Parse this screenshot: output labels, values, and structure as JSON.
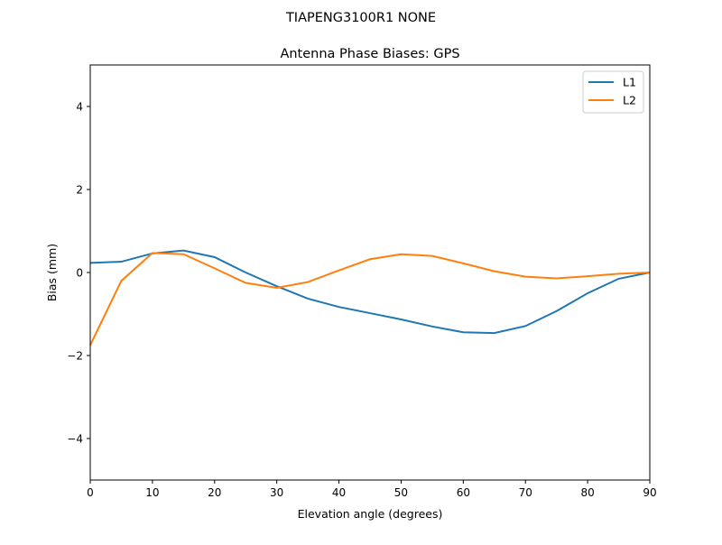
{
  "chart_data": {
    "type": "line",
    "suptitle": "TIAPENG3100R1   NONE",
    "title": "Antenna Phase Biases: GPS",
    "xlabel": "Elevation angle (degrees)",
    "ylabel": "Bias (mm)",
    "xlim": [
      0,
      90
    ],
    "ylim": [
      -5,
      5
    ],
    "xticks": [
      0,
      10,
      20,
      30,
      40,
      50,
      60,
      70,
      80,
      90
    ],
    "yticks": [
      -4,
      -2,
      0,
      2,
      4
    ],
    "ytick_labels": [
      "−4",
      "−2",
      "0",
      "2",
      "4"
    ],
    "grid": false,
    "legend_placement": "top-right",
    "x": [
      0,
      5,
      10,
      15,
      20,
      25,
      30,
      35,
      40,
      45,
      50,
      55,
      60,
      65,
      70,
      75,
      80,
      85,
      90
    ],
    "series": [
      {
        "name": "L1",
        "color": "#1f77b4",
        "values": [
          0.23,
          0.26,
          0.46,
          0.53,
          0.37,
          0.0,
          -0.33,
          -0.63,
          -0.83,
          -0.98,
          -1.13,
          -1.3,
          -1.44,
          -1.46,
          -1.29,
          -0.93,
          -0.5,
          -0.15,
          0.0
        ]
      },
      {
        "name": "L2",
        "color": "#ff7f0e",
        "values": [
          -1.75,
          -0.2,
          0.47,
          0.44,
          0.1,
          -0.25,
          -0.37,
          -0.23,
          0.05,
          0.32,
          0.44,
          0.4,
          0.22,
          0.03,
          -0.1,
          -0.14,
          -0.09,
          -0.03,
          0.0
        ]
      }
    ]
  }
}
